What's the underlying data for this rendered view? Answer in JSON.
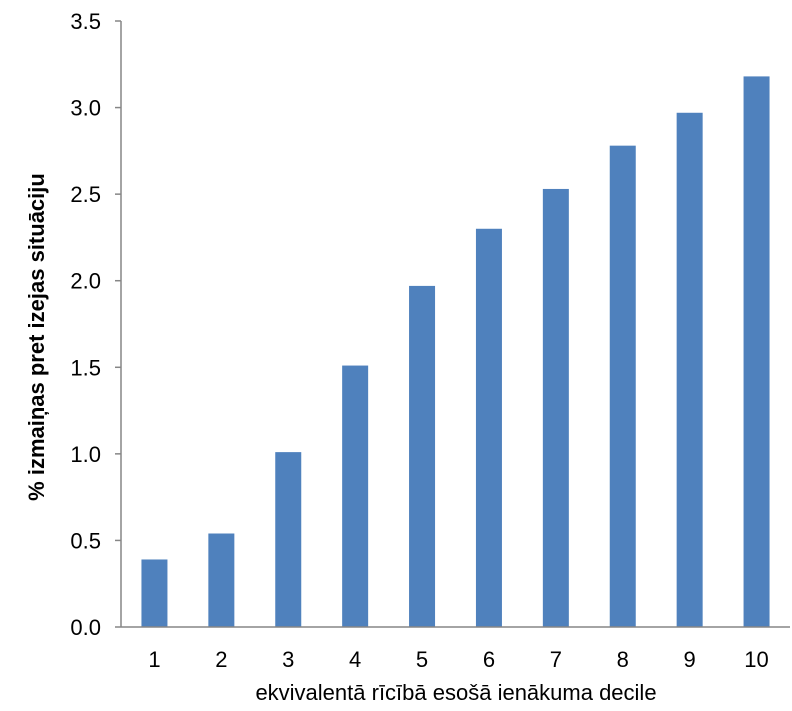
{
  "chart_data": {
    "type": "bar",
    "title": "",
    "xlabel": "ekvivalentā rīcībā esošā ienākuma decile",
    "ylabel": "% izmaiņas pret izejas situāciju",
    "categories": [
      "1",
      "2",
      "3",
      "4",
      "5",
      "6",
      "7",
      "8",
      "9",
      "10"
    ],
    "values": [
      0.39,
      0.54,
      1.01,
      1.51,
      1.97,
      2.3,
      2.53,
      2.78,
      2.97,
      3.18
    ],
    "ylim": [
      0,
      3.5
    ],
    "yticks": [
      "0.0",
      "0.5",
      "1.0",
      "1.5",
      "2.0",
      "2.5",
      "3.0",
      "3.5"
    ],
    "grid": false,
    "legend": "none",
    "bar_color": "#4f81bd"
  }
}
